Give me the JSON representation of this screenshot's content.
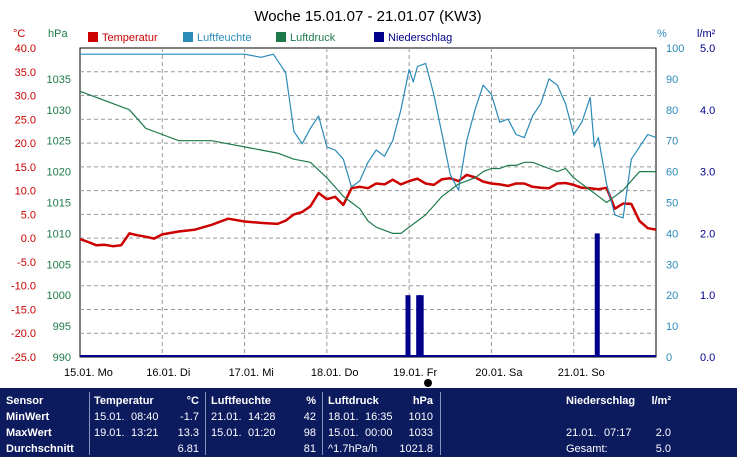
{
  "chart_data": {
    "type": "line",
    "title": "Woche 15.01.07 - 21.01.07 (KW3)",
    "legend": [
      {
        "label": "Temperatur",
        "color": "#cc0000"
      },
      {
        "label": "Luftfeuchte",
        "color": "#2a8ab8"
      },
      {
        "label": "Luftdruck",
        "color": "#1e7a4a"
      },
      {
        "label": "Niederschlag",
        "color": "#00008b"
      }
    ],
    "axes": {
      "temp": {
        "unit": "°C",
        "min": -25,
        "max": 40,
        "ticks": [
          "40.0",
          "35.0",
          "30.0",
          "25.0",
          "20.0",
          "15.0",
          "10.0",
          "5.0",
          "0.0",
          "-5.0",
          "-10.0",
          "-15.0",
          "-20.0",
          "-25.0"
        ],
        "color": "#cc0000"
      },
      "pressure": {
        "unit": "hPa",
        "min": 990,
        "max": 1040,
        "ticks": [
          "1035",
          "1030",
          "1025",
          "1020",
          "1015",
          "1010",
          "1005",
          "1000",
          "995",
          "990"
        ],
        "color": "#1e7a4a"
      },
      "humidity": {
        "unit": "%",
        "min": 0,
        "max": 100,
        "ticks": [
          "100",
          "90",
          "80",
          "70",
          "60",
          "50",
          "40",
          "30",
          "20",
          "10",
          "0"
        ],
        "color": "#2a8ab8"
      },
      "rain": {
        "unit": "l/m²",
        "min": 0,
        "max": 5,
        "ticks": [
          "5.0",
          "4.0",
          "3.0",
          "2.0",
          "1.0",
          "0.0"
        ],
        "color": "#00008b"
      }
    },
    "x_ticks": [
      "15.01. Mo",
      "16.01. Di",
      "17.01. Mi",
      "18.01. Do",
      "19.01. Fr",
      "20.01. Sa",
      "21.01. So"
    ],
    "days": 7,
    "grid": true,
    "series": [
      {
        "name": "Temperatur",
        "axis": "temp",
        "color": "#cc0000",
        "x": [
          0,
          0.1,
          0.2,
          0.3,
          0.4,
          0.5,
          0.6,
          0.7,
          0.8,
          0.9,
          1.0,
          1.2,
          1.4,
          1.6,
          1.8,
          2.0,
          2.2,
          2.4,
          2.5,
          2.6,
          2.7,
          2.8,
          2.9,
          3.0,
          3.1,
          3.2,
          3.3,
          3.4,
          3.5,
          3.6,
          3.7,
          3.8,
          3.9,
          4.0,
          4.1,
          4.2,
          4.3,
          4.4,
          4.5,
          4.6,
          4.7,
          4.8,
          4.9,
          5.0,
          5.1,
          5.2,
          5.3,
          5.4,
          5.5,
          5.6,
          5.7,
          5.8,
          5.9,
          6.0,
          6.1,
          6.2,
          6.3,
          6.4,
          6.5,
          6.6,
          6.7,
          6.8,
          6.9,
          7.0
        ],
        "y": [
          -0.2,
          -0.8,
          -1.5,
          -1.4,
          -1.7,
          -1.5,
          1.0,
          0.6,
          0.3,
          -0.1,
          0.8,
          1.4,
          1.8,
          2.8,
          4.1,
          3.5,
          3.2,
          3.0,
          3.7,
          5.0,
          5.5,
          6.7,
          9.5,
          8.2,
          8.7,
          7.0,
          10.5,
          10.8,
          10.5,
          11.5,
          11.3,
          12.3,
          11.3,
          12.0,
          12.5,
          11.5,
          11.2,
          12.4,
          12.6,
          12.0,
          13.3,
          12.8,
          11.9,
          11.5,
          11.3,
          11.0,
          11.5,
          11.5,
          10.8,
          10.6,
          10.5,
          11.5,
          11.6,
          11.2,
          10.6,
          10.5,
          10.3,
          10.6,
          6.2,
          7.3,
          7.2,
          3.6,
          2.1,
          1.8
        ]
      },
      {
        "name": "Luftfeuchte",
        "axis": "humidity",
        "color": "#2a8ab8",
        "x": [
          0,
          0.5,
          1.0,
          1.5,
          2.0,
          2.2,
          2.35,
          2.4,
          2.5,
          2.6,
          2.7,
          2.8,
          2.9,
          3.0,
          3.1,
          3.2,
          3.3,
          3.4,
          3.5,
          3.6,
          3.7,
          3.8,
          3.9,
          4.0,
          4.05,
          4.1,
          4.2,
          4.3,
          4.4,
          4.5,
          4.6,
          4.7,
          4.8,
          4.9,
          5.0,
          5.1,
          5.2,
          5.3,
          5.4,
          5.5,
          5.6,
          5.7,
          5.8,
          5.9,
          6.0,
          6.1,
          6.2,
          6.25,
          6.3,
          6.4,
          6.5,
          6.6,
          6.7,
          6.8,
          6.9,
          7.0
        ],
        "y": [
          98,
          98,
          98,
          98,
          98,
          97,
          98,
          96,
          92,
          73,
          69,
          74,
          78,
          68,
          67,
          64,
          55,
          57,
          63,
          67,
          65,
          70,
          80,
          93,
          89,
          94,
          95,
          85,
          72,
          59,
          54,
          70,
          80,
          88,
          85,
          76,
          77,
          72,
          71,
          78,
          82,
          90,
          88,
          82,
          72,
          76,
          84,
          68,
          71,
          56,
          46,
          45,
          64,
          68,
          72,
          71
        ]
      },
      {
        "name": "Luftdruck",
        "axis": "pressure",
        "color": "#1e7a4a",
        "x": [
          0,
          0.2,
          0.4,
          0.6,
          0.8,
          1.0,
          1.2,
          1.4,
          1.6,
          1.8,
          2.0,
          2.2,
          2.4,
          2.6,
          2.8,
          3.0,
          3.1,
          3.2,
          3.3,
          3.4,
          3.5,
          3.6,
          3.7,
          3.8,
          3.9,
          4.0,
          4.1,
          4.2,
          4.3,
          4.4,
          4.5,
          4.6,
          4.7,
          4.8,
          4.9,
          5.0,
          5.1,
          5.2,
          5.3,
          5.4,
          5.5,
          5.6,
          5.7,
          5.8,
          5.9,
          6.0,
          6.1,
          6.2,
          6.3,
          6.4,
          6.5,
          6.6,
          6.8,
          7.0
        ],
        "y": [
          1033,
          1032,
          1031,
          1030,
          1027,
          1026,
          1025,
          1025,
          1025,
          1024.5,
          1024,
          1023.5,
          1023,
          1022,
          1021.5,
          1019,
          1017.5,
          1016,
          1015,
          1014,
          1012,
          1011,
          1010.5,
          1010,
          1010,
          1011,
          1012,
          1013,
          1014.5,
          1016,
          1017,
          1018,
          1018.5,
          1019,
          1020,
          1020.5,
          1020.5,
          1021,
          1021,
          1021.5,
          1021.5,
          1021,
          1020.5,
          1020,
          1020.5,
          1019,
          1018,
          1017,
          1016,
          1015,
          1016,
          1017,
          1020,
          1020
        ]
      },
      {
        "name": "Niederschlag",
        "axis": "rain",
        "color": "#00008b",
        "type": "bar",
        "x": [
          3.98,
          4.11,
          4.14,
          6.28
        ],
        "y": [
          1.0,
          1.0,
          1.0,
          2.0
        ]
      }
    ]
  },
  "stats": {
    "sensor": {
      "header": "Sensor",
      "rows": [
        "MinWert",
        "MaxWert",
        "Durchschnitt"
      ]
    },
    "temperatur": {
      "header": "Temperatur",
      "unit": "°C",
      "rows": [
        {
          "date": "15.01.",
          "time": "08:40",
          "value": "-1.7"
        },
        {
          "date": "19.01.",
          "time": "13:21",
          "value": "13.3"
        },
        {
          "date": "",
          "time": "",
          "value": "6.81"
        }
      ]
    },
    "luftfeuchte": {
      "header": "Luftfeuchte",
      "unit": "%",
      "rows": [
        {
          "date": "21.01.",
          "time": "14:28",
          "value": "42"
        },
        {
          "date": "15.01.",
          "time": "01:20",
          "value": "98"
        },
        {
          "date": "",
          "time": "",
          "value": "81"
        }
      ]
    },
    "luftdruck": {
      "header": "Luftdruck",
      "unit": "hPa",
      "rows": [
        {
          "date": "18.01.",
          "time": "16:35",
          "value": "1010"
        },
        {
          "date": "15.01.",
          "time": "00:00",
          "value": "1033"
        },
        {
          "date": "^1.7hPa/h",
          "time": "",
          "value": "1021.8"
        }
      ]
    },
    "niederschlag": {
      "header": "Niederschlag",
      "unit": "l/m²",
      "rows": [
        {
          "date": "",
          "time": "",
          "value": ""
        },
        {
          "date": "21.01.",
          "time": "07:17",
          "value": "2.0"
        },
        {
          "date": "Gesamt:",
          "time": "",
          "value": "5.0"
        }
      ]
    }
  }
}
